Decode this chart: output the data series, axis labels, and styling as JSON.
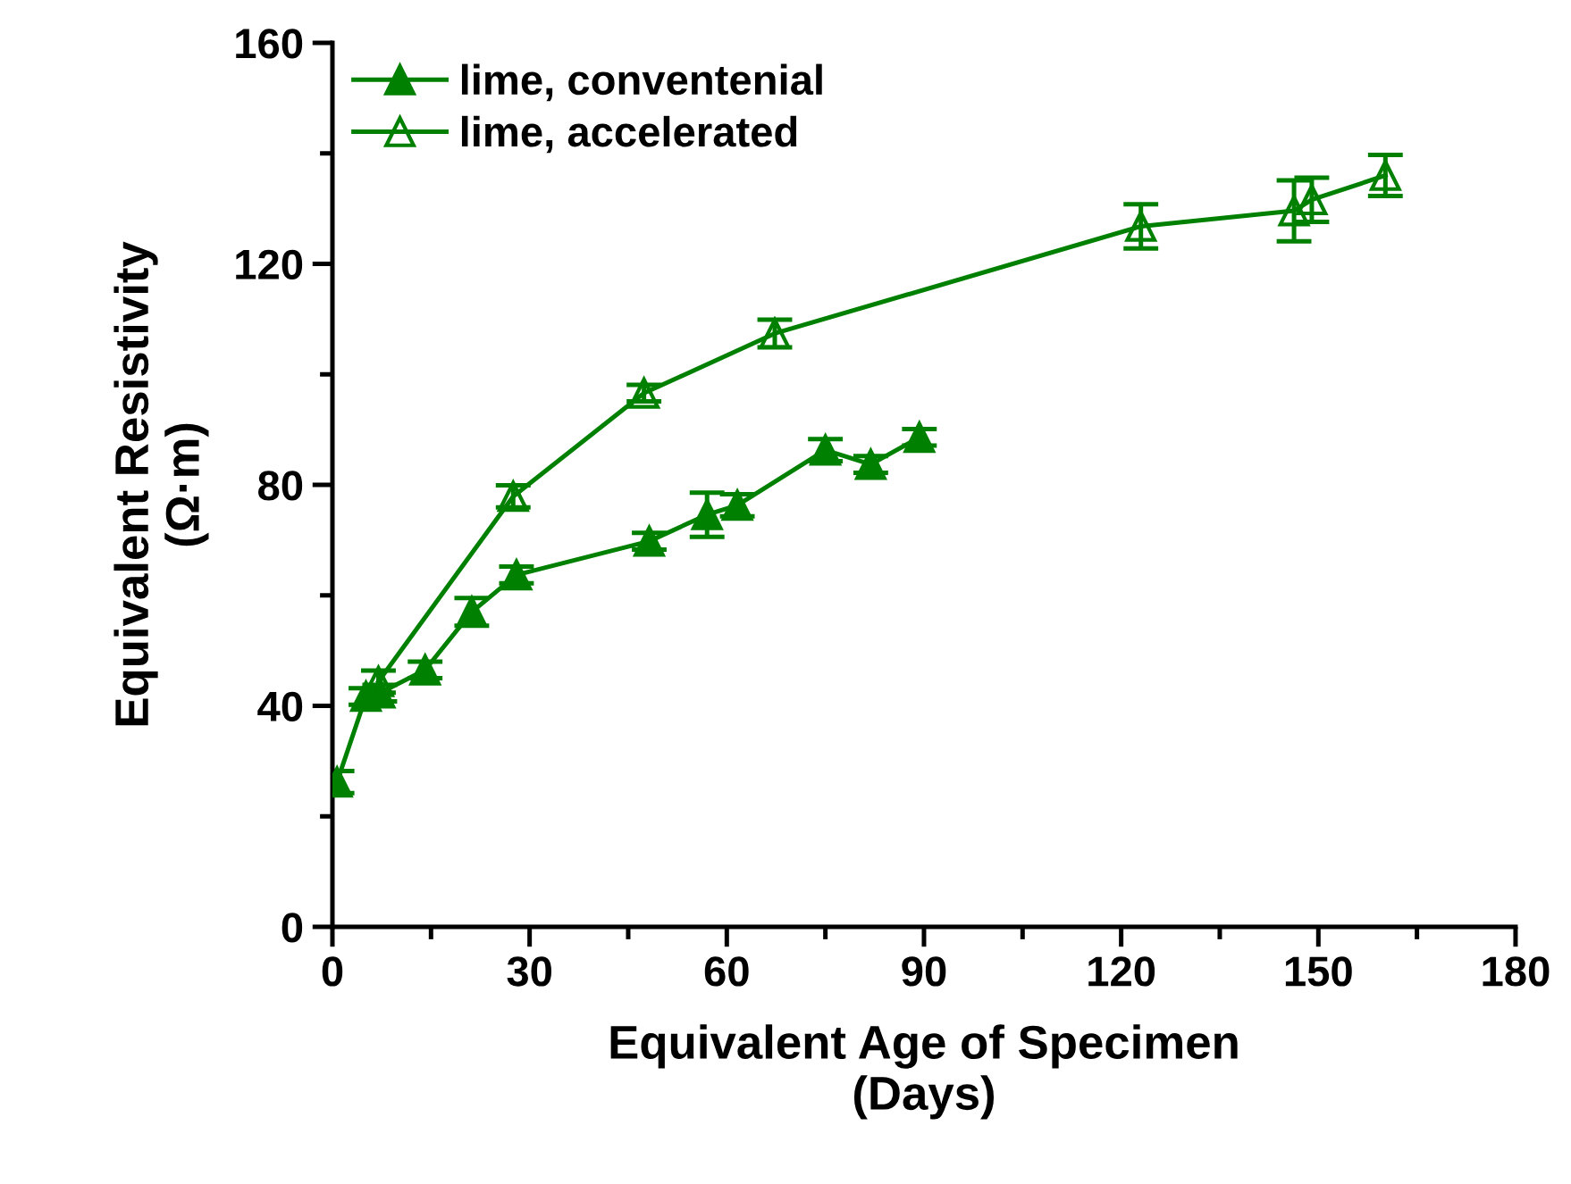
{
  "chart_data": {
    "type": "line",
    "xlabel": "Equivalent Age of Specimen\n(Days)",
    "ylabel": "Equivalent Resistivity\n(Ω·m)",
    "xlim": [
      0,
      180
    ],
    "ylim": [
      0,
      160
    ],
    "xticks": [
      0,
      {
        "value": 15,
        "label": null
      },
      30,
      {
        "value": 45,
        "label": null
      },
      60,
      {
        "value": 75,
        "label": null
      },
      90,
      {
        "value": 105,
        "label": null
      },
      120,
      {
        "value": 135,
        "label": null
      },
      150,
      {
        "value": 165,
        "label": null
      },
      180
    ],
    "yticks": [
      0,
      {
        "value": 20,
        "label": null
      },
      40,
      {
        "value": 60,
        "label": null
      },
      80,
      {
        "value": 100,
        "label": null
      },
      120,
      {
        "value": 140,
        "label": null
      },
      160
    ],
    "grid": false,
    "legend": "top left",
    "line_style": "solid",
    "series": [
      {
        "name": "lime, conventenial",
        "color": "#008000",
        "marker": "triangle",
        "x": [
          0.7,
          5.1,
          7.2,
          14.1,
          21.2,
          28,
          48.2,
          57,
          61.6,
          75,
          81.9,
          89.3
        ],
        "values": [
          26.2,
          41.7,
          42.3,
          46.5,
          57,
          63.7,
          69.8,
          74.6,
          76.3,
          86.3,
          83.7,
          88.6
        ],
        "errors": [
          2,
          1.5,
          1.5,
          1.5,
          2.5,
          1.5,
          1.5,
          4,
          2,
          2,
          1.5,
          1.5
        ]
      },
      {
        "name": "lime, accelerated",
        "color": "#008000",
        "marker": "triangle",
        "x": [
          7,
          27.5,
          47.4,
          67.3,
          123,
          146.3,
          149,
          160.2
        ],
        "values": [
          44.4,
          77.9,
          96.6,
          107.4,
          126.8,
          129.6,
          131.6,
          136
        ],
        "errors": [
          2,
          2,
          1.5,
          2.5,
          4,
          5.5,
          4,
          3.7
        ]
      }
    ]
  }
}
